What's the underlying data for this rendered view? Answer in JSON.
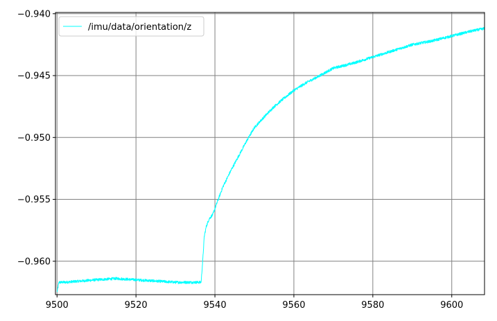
{
  "chart_data": {
    "type": "line",
    "title": "",
    "xlabel": "",
    "ylabel": "",
    "xlim": [
      9499.6,
      9608.3
    ],
    "ylim": [
      -0.9627,
      -0.9399
    ],
    "x_ticks": [
      9500,
      9520,
      9540,
      9560,
      9580,
      9600
    ],
    "x_tick_labels": [
      "9500",
      "9520",
      "9540",
      "9560",
      "9580",
      "9600"
    ],
    "y_ticks": [
      -0.96,
      -0.955,
      -0.95,
      -0.945,
      -0.94
    ],
    "y_tick_labels": [
      "−0.960",
      "−0.955",
      "−0.950",
      "−0.945",
      "−0.940"
    ],
    "grid": true,
    "legend_position": "top-left",
    "series": [
      {
        "name": "/imu/data/orientation/z",
        "color": "#00ffff",
        "x": [
          9500.0,
          9500.5,
          9502,
          9506,
          9510,
          9515,
          9520,
          9525,
          9530,
          9534,
          9536.5,
          9536.9,
          9537.3,
          9537.8,
          9538.5,
          9539.5,
          9540.5,
          9542,
          9544,
          9546,
          9548,
          9550,
          9552,
          9555,
          9558,
          9560,
          9563,
          9566,
          9570,
          9575,
          9580,
          9585,
          9590,
          9595,
          9600,
          9605,
          9608.3
        ],
        "y": [
          -0.9625,
          -0.9617,
          -0.9617,
          -0.9616,
          -0.9615,
          -0.9614,
          -0.9615,
          -0.9616,
          -0.9617,
          -0.9617,
          -0.9617,
          -0.96,
          -0.958,
          -0.9572,
          -0.9566,
          -0.9562,
          -0.9553,
          -0.954,
          -0.9527,
          -0.9515,
          -0.9503,
          -0.9492,
          -0.9485,
          -0.9475,
          -0.9467,
          -0.9462,
          -0.9456,
          -0.9451,
          -0.9444,
          -0.944,
          -0.9435,
          -0.943,
          -0.9425,
          -0.9422,
          -0.9418,
          -0.9414,
          -0.9412
        ]
      }
    ]
  }
}
